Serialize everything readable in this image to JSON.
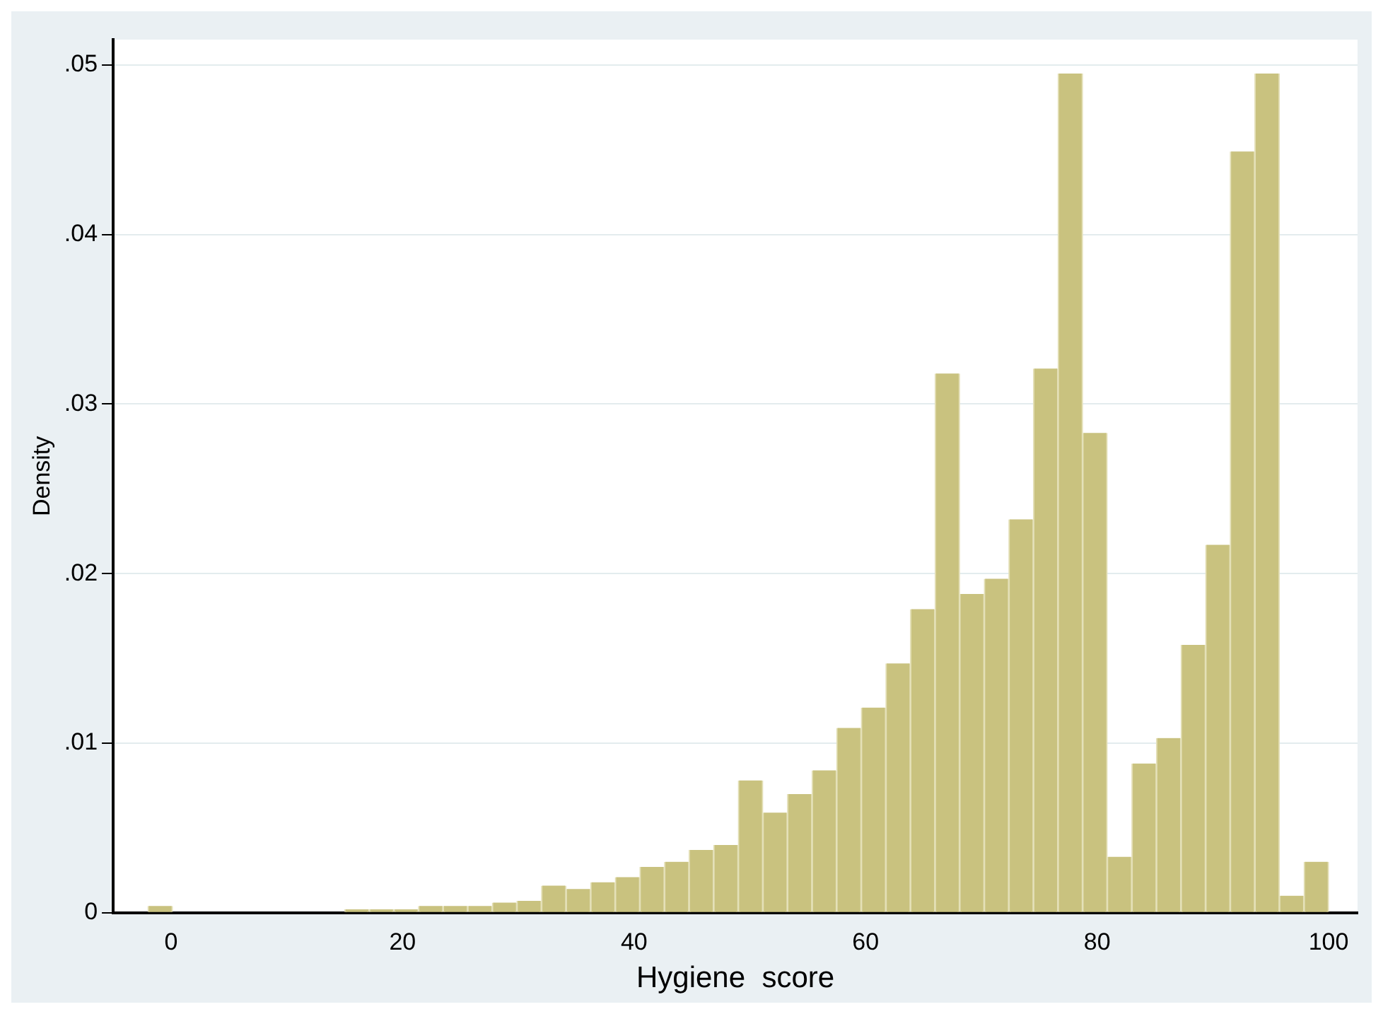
{
  "chart_data": {
    "type": "histogram",
    "xlabel": "Hygiene  score",
    "ylabel": "Density",
    "bins": [
      -2,
      0.125,
      2.25,
      4.375,
      6.5,
      8.625,
      10.75,
      12.875,
      15,
      17.125,
      19.25,
      21.375,
      23.5,
      25.625,
      27.75,
      29.875,
      32,
      34.125,
      36.25,
      38.375,
      40.5,
      42.625,
      44.75,
      46.875,
      49,
      51.125,
      53.25,
      55.375,
      57.5,
      59.625,
      61.75,
      63.875,
      66,
      68.125,
      70.25,
      72.375,
      74.5,
      76.625,
      78.75,
      80.875,
      83,
      85.125,
      87.25,
      89.375,
      91.5,
      93.625,
      95.75,
      97.875,
      100
    ],
    "values": [
      0.0004,
      0,
      0,
      0,
      0,
      0,
      0,
      0,
      0.0002,
      0.0002,
      0.0002,
      0.0004,
      0.0004,
      0.0004,
      0.0006,
      0.0007,
      0.0016,
      0.0014,
      0.0018,
      0.0021,
      0.0027,
      0.003,
      0.0037,
      0.004,
      0.0078,
      0.0059,
      0.007,
      0.0084,
      0.0109,
      0.0121,
      0.0147,
      0.0179,
      0.0318,
      0.0188,
      0.0197,
      0.0232,
      0.0321,
      0.0495,
      0.0283,
      0.0033,
      0.0088,
      0.0103,
      0.0158,
      0.0217,
      0.0449,
      0.0495,
      0.001,
      0.003
    ],
    "color": "#c9c27f",
    "xlim": [
      -5,
      102.5
    ],
    "xticks": [
      0,
      20,
      40,
      60,
      80,
      100
    ],
    "ylim": [
      0,
      0.0515
    ],
    "yticks": [
      0,
      {
        "value": 0.01,
        "label": ".01"
      },
      {
        "value": 0.02,
        "label": ".02"
      },
      {
        "value": 0.03,
        "label": ".03"
      },
      {
        "value": 0.04,
        "label": ".04"
      },
      {
        "value": 0.05,
        "label": ".05"
      }
    ],
    "grid": "y"
  }
}
